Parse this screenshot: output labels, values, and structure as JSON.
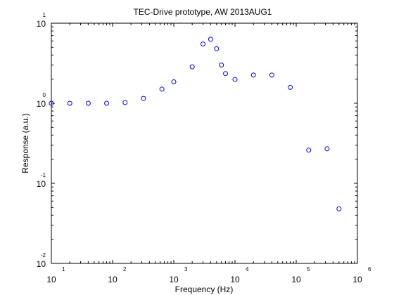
{
  "chart_data": {
    "type": "scatter",
    "title": "TEC-Drive prototype, AW 2013AUG1",
    "xlabel": "Frequency (Hz)",
    "ylabel": "Response (a.u.)",
    "xscale": "log",
    "yscale": "log",
    "xlim": [
      10,
      1000000
    ],
    "ylim": [
      0.01,
      10
    ],
    "grid": false,
    "legend": "none",
    "marker": "open-circle",
    "marker_color": "#0000ff",
    "x_ticks": [
      {
        "base": "10",
        "exp": "1"
      },
      {
        "base": "10",
        "exp": "2"
      },
      {
        "base": "10",
        "exp": "3"
      },
      {
        "base": "10",
        "exp": "4"
      },
      {
        "base": "10",
        "exp": "5"
      },
      {
        "base": "10",
        "exp": "6"
      }
    ],
    "y_ticks": [
      {
        "base": "10",
        "exp": "-2"
      },
      {
        "base": "10",
        "exp": "-1"
      },
      {
        "base": "10",
        "exp": "0"
      },
      {
        "base": "10",
        "exp": "1"
      }
    ],
    "series": [
      {
        "x": [
          10,
          20,
          40,
          80,
          160,
          320,
          640,
          1000,
          2000,
          3000,
          4000,
          5000,
          6000,
          7000,
          10000,
          20000,
          40000,
          80000,
          160000,
          320000,
          500000
        ],
        "y": [
          1.0,
          1.0,
          1.0,
          1.0,
          1.02,
          1.15,
          1.5,
          1.85,
          2.85,
          5.5,
          6.3,
          4.8,
          3.0,
          2.35,
          1.98,
          2.25,
          2.25,
          1.58,
          0.26,
          0.27,
          0.048
        ]
      }
    ]
  }
}
